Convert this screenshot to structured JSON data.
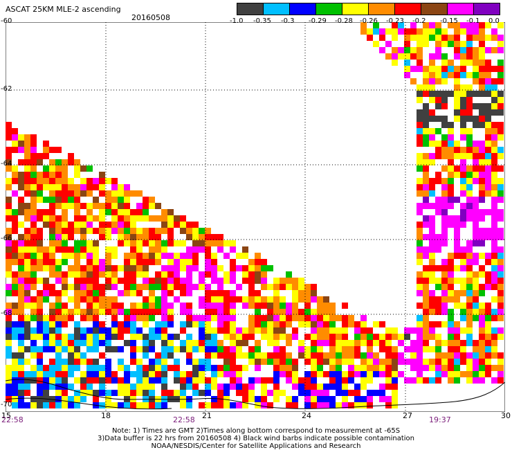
{
  "header": {
    "title": "ASCAT 25KM MLE-2 ascending",
    "date": "20160508"
  },
  "color_scale": {
    "colors": [
      "#404040",
      "#00bfff",
      "#0000ff",
      "#00c000",
      "#ffff00",
      "#ff8c00",
      "#ff0000",
      "#8b4513",
      "#ff00ff",
      "#8000c0"
    ],
    "labels": [
      "-1.0",
      "-0.35",
      "-0.3",
      "-0.29",
      "-0.28",
      "-0.26",
      "-0.23",
      "-0.2",
      "-0.15",
      "-0.1",
      "0.0"
    ]
  },
  "axes": {
    "lat_labels": [
      "-60",
      "-62",
      "-64",
      "-66",
      "-68",
      "-70"
    ],
    "lon_labels": [
      "15",
      "18",
      "21",
      "24",
      "27",
      "30"
    ],
    "time_labels": [
      "22:58",
      "22:58",
      "19:37"
    ]
  },
  "notes": [
    "Note: 1) Times are GMT 2)Times along bottom correspond to measurement at -65S",
    "3)Data buffer is 22 hrs from 20160508 4) Black wind barbs indicate possible contamination",
    "NOAA/NESDIS/Center for Satellite Applications and Research"
  ]
}
